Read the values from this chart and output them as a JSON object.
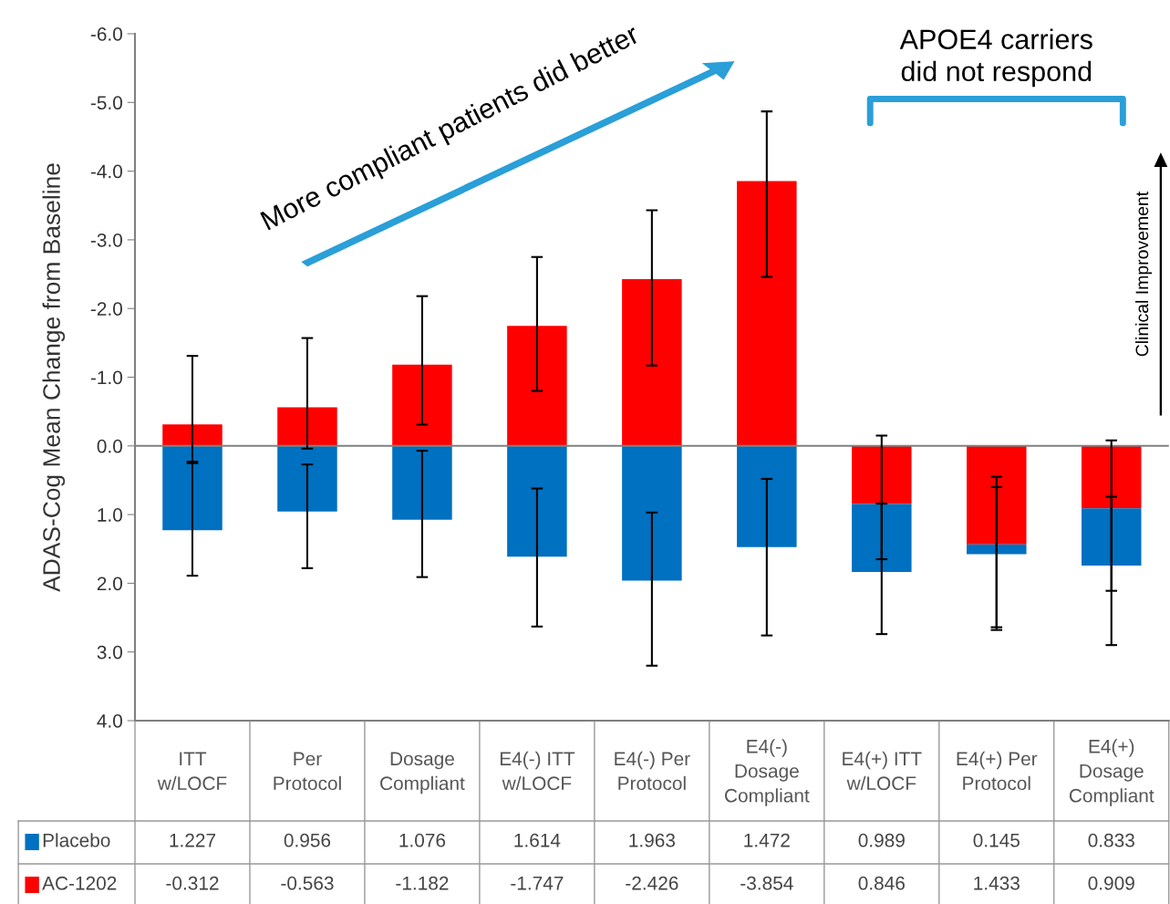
{
  "chart_data": {
    "type": "bar",
    "stacked": true,
    "data_labels": true,
    "ylabel": "ADAS-Cog Mean Change from Baseline",
    "categories": [
      "ITT\nw/LOCF",
      "Per\nProtocol",
      "Dosage\nCompliant",
      "E4(-) ITT\nw/LOCF",
      "E4(-) Per\nProtocol",
      "E4(-)\nDosage\nCompliant",
      "E4(+) ITT\nw/LOCF",
      "E4(+) Per\nProtocol",
      "E4(+)\nDosage\nCompliant"
    ],
    "series": [
      {
        "name": "AC-1202",
        "color": "#ff0000",
        "values": [
          -0.312,
          -0.563,
          -1.182,
          -1.747,
          -2.426,
          -3.854,
          0.846,
          1.433,
          0.909
        ],
        "errors": [
          [
            -1.31,
            0.23
          ],
          [
            -1.57,
            0.04
          ],
          [
            -2.18,
            -0.31
          ],
          [
            -2.75,
            -0.8
          ],
          [
            -3.43,
            -1.17
          ],
          [
            -4.87,
            -2.46
          ],
          [
            -0.15,
            1.65
          ],
          [
            0.45,
            2.64
          ],
          [
            -0.08,
            2.11
          ]
        ]
      },
      {
        "name": "Placebo",
        "color": "#0070c0",
        "values": [
          1.227,
          0.956,
          1.076,
          1.614,
          1.963,
          1.472,
          0.989,
          0.145,
          0.833
        ],
        "errors": [
          [
            0.25,
            1.89
          ],
          [
            0.27,
            1.78
          ],
          [
            0.07,
            1.91
          ],
          [
            0.62,
            2.63
          ],
          [
            0.97,
            3.2
          ],
          [
            0.48,
            2.76
          ],
          [
            0.84,
            2.74
          ],
          [
            0.6,
            2.68
          ],
          [
            0.74,
            2.9
          ]
        ]
      }
    ],
    "ylim": [
      4,
      -6
    ],
    "yticks": [
      {
        "value": -6,
        "label": "-6.0"
      },
      {
        "value": -5,
        "label": "-5.0"
      },
      {
        "value": -4,
        "label": "-4.0"
      },
      {
        "value": -3,
        "label": "-3.0"
      },
      {
        "value": -2,
        "label": "-2.0"
      },
      {
        "value": -1,
        "label": "-1.0"
      },
      {
        "value": 0,
        "label": "0.0"
      },
      {
        "value": 1,
        "label": "1.0"
      },
      {
        "value": 2,
        "label": "2.0"
      },
      {
        "value": 3,
        "label": "3.0"
      },
      {
        "value": 4,
        "label": "4.0"
      }
    ],
    "ref_lines": [
      {
        "axis": "y",
        "value": 0,
        "color": "#808080"
      }
    ],
    "annotations": [
      "More compliant patients did better",
      "APOE4 carriers\ndid not respond",
      "Clinical Improvement"
    ],
    "grid": false,
    "legend": "bottom left"
  }
}
